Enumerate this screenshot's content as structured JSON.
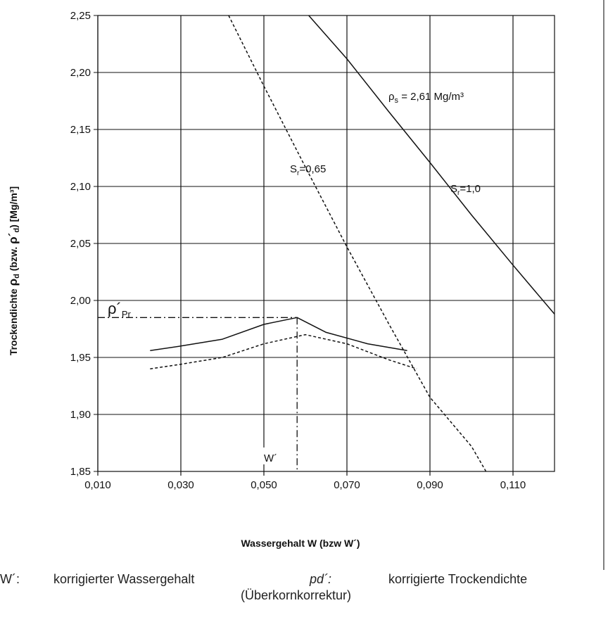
{
  "chart_data": {
    "type": "line",
    "xlabel": "Wassergehalt W (bzw W´)",
    "ylabel_main": "Trockendichte ",
    "ylabel_rho": "ρ",
    "ylabel_d": "d",
    "ylabel_mid": " (bzw. ",
    "ylabel_rho2": "ρ´",
    "ylabel_d2": "d",
    "ylabel_end": ") [Mg/m³]",
    "xlim": [
      0.01,
      0.12
    ],
    "ylim": [
      1.85,
      2.25
    ],
    "xticks": [
      0.01,
      0.03,
      0.05,
      0.07,
      0.09,
      0.11
    ],
    "xtick_labels": [
      "0,010",
      "0,030",
      "0,050",
      "0,070",
      "0,090",
      "0,110"
    ],
    "yticks": [
      1.85,
      1.9,
      1.95,
      2.0,
      2.05,
      2.1,
      2.15,
      2.2,
      2.25
    ],
    "ytick_labels": [
      "1,85",
      "1,90",
      "1,95",
      "2,00",
      "2,05",
      "2,10",
      "2,15",
      "2,20",
      "2,25"
    ],
    "grid": true,
    "series": [
      {
        "key": "sr10",
        "style": "solid",
        "x": [
          0.0608,
          0.07,
          0.08,
          0.09,
          0.1,
          0.11,
          0.12
        ],
        "y": [
          2.25,
          2.212,
          2.166,
          2.121,
          2.075,
          2.031,
          1.988
        ]
      },
      {
        "key": "sr065",
        "style": "dashed",
        "x": [
          0.0415,
          0.05,
          0.06,
          0.07,
          0.08,
          0.09,
          0.1,
          0.1035
        ],
        "y": [
          2.25,
          2.188,
          2.117,
          2.047,
          1.98,
          1.915,
          1.872,
          1.85
        ]
      },
      {
        "key": "proctor_corrected",
        "style": "solid",
        "x": [
          0.0226,
          0.03,
          0.04,
          0.05,
          0.058,
          0.065,
          0.075,
          0.0845
        ],
        "y": [
          1.956,
          1.96,
          1.966,
          1.979,
          1.985,
          1.972,
          1.962,
          1.956
        ]
      },
      {
        "key": "proctor_original",
        "style": "dashed",
        "x": [
          0.0226,
          0.03,
          0.04,
          0.05,
          0.06,
          0.07,
          0.08,
          0.0868
        ],
        "y": [
          1.94,
          1.944,
          1.95,
          1.962,
          1.97,
          1.962,
          1.948,
          1.94
        ]
      }
    ],
    "reference_lines": {
      "x": 0.058,
      "y": 1.985,
      "style": "dash-dot"
    },
    "annotations": {
      "rho_s_sym": "ρ",
      "rho_s_sub": "s",
      "rho_s_text": " = 2,61 Mg/m³",
      "sr065_S": "S",
      "sr065_sub": "r",
      "sr065_text": "=0,65",
      "sr10_S": "S",
      "sr10_sub": "r",
      "sr10_text": "=1,0",
      "rho_pr_sym": "ρ´",
      "rho_pr_sub": "Pr",
      "w_prime": "W´"
    }
  },
  "legend": {
    "w_key": "W´:",
    "w_desc": "korrigierter Wassergehalt",
    "p_key": "pd´:",
    "p_desc": "korrigierte Trockendichte",
    "p_note": "(Überkornkorrektur)"
  },
  "colors": {
    "line": "#111111",
    "grid": "#111111",
    "frame": "#444444"
  }
}
